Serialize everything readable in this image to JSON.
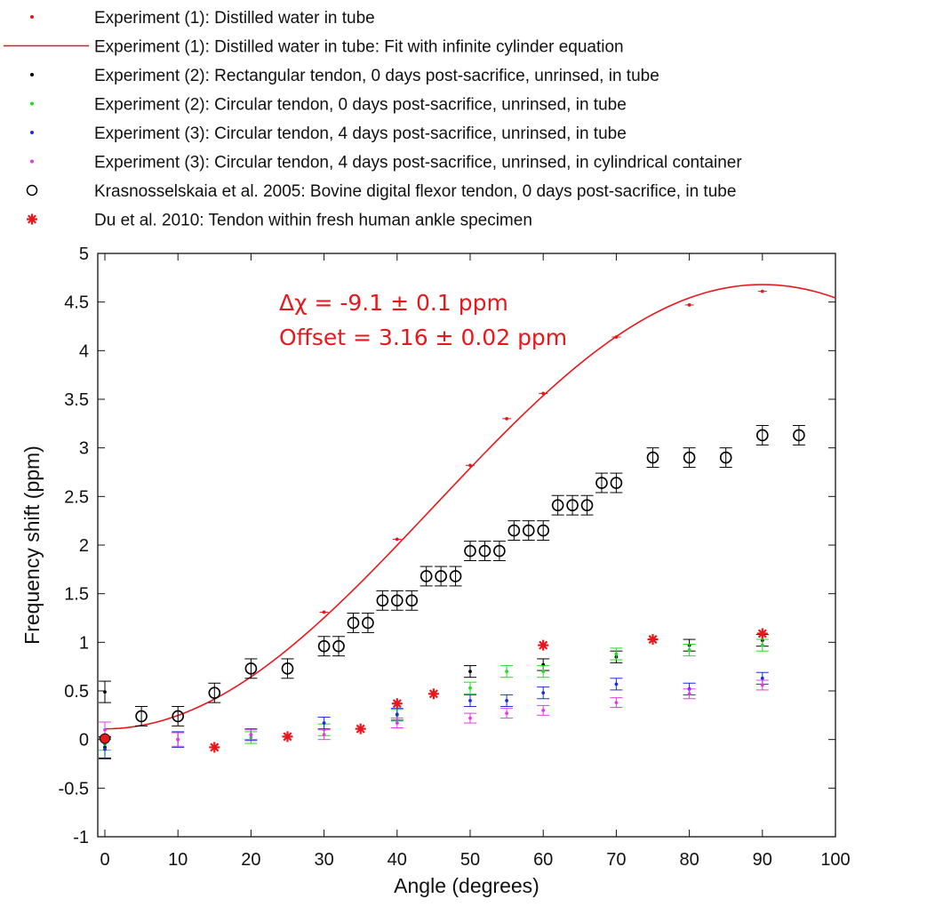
{
  "colors": {
    "exp1": "#e8171c",
    "exp2_rect": "#000000",
    "exp2_circ": "#22dd22",
    "exp3_tube": "#1a2de0",
    "exp3_cyl": "#e43be4",
    "kras": "#000000",
    "du": "#e8171c",
    "axis": "#111111",
    "annotation": "#e8171c"
  },
  "legend": [
    {
      "label": "Experiment (1): Distilled water in tube",
      "marker": "dot",
      "color": "#e8171c"
    },
    {
      "label": "Experiment (1): Distilled water in tube: Fit with infinite cylinder equation",
      "marker": "line",
      "color": "#e8171c"
    },
    {
      "label": "Experiment (2): Rectangular tendon, 0 days post-sacrifice, unrinsed, in tube",
      "marker": "dot",
      "color": "#000000"
    },
    {
      "label": "Experiment (2): Circular tendon, 0 days post-sacrifice, unrinsed, in tube",
      "marker": "dot",
      "color": "#22dd22"
    },
    {
      "label": "Experiment (3): Circular tendon, 4 days post-sacrifice, unrinsed, in tube",
      "marker": "dot",
      "color": "#1a2de0"
    },
    {
      "label": "Experiment (3): Circular tendon, 4 days post-sacrifice, unrinsed, in cylindrical container",
      "marker": "dot",
      "color": "#e43be4"
    },
    {
      "label": "Krasnosselskaia et al. 2005: Bovine digital flexor tendon, 0 days post-sacrifice, in tube",
      "marker": "circle",
      "color": "#000000"
    },
    {
      "label": "Du et al. 2010: Tendon within fresh human ankle specimen",
      "marker": "star",
      "color": "#e8171c"
    }
  ],
  "annotations": {
    "line1": "Δχ = -9.1 ± 0.1 ppm",
    "line2": "Offset = 3.16 ± 0.02 ppm"
  },
  "chart_data": {
    "type": "scatter",
    "title": "",
    "xlabel": "Angle (degrees)",
    "ylabel": "Frequency shift (ppm)",
    "xlim": [
      0,
      100
    ],
    "ylim": [
      -1,
      5
    ],
    "xticks": [
      0,
      10,
      20,
      30,
      40,
      50,
      60,
      70,
      80,
      90,
      100
    ],
    "yticks": [
      -1,
      -0.5,
      0,
      0.5,
      1,
      1.5,
      2,
      2.5,
      3,
      3.5,
      4,
      4.5,
      5
    ],
    "fit": {
      "name": "Fit with infinite cylinder equation",
      "delta_chi_ppm": -9.1,
      "offset_ppm": 3.16,
      "peak_y": 4.68,
      "base_y": 0.11
    },
    "series": [
      {
        "name": "Experiment (1): Distilled water in tube",
        "key": "exp1",
        "marker": "dot",
        "x": [
          0,
          30,
          40,
          50,
          55,
          60,
          70,
          80,
          90
        ],
        "y": [
          0.01,
          1.31,
          2.06,
          2.82,
          3.3,
          3.56,
          4.14,
          4.47,
          4.61
        ],
        "err": [
          0,
          0,
          0,
          0,
          0,
          0,
          0,
          0,
          0
        ]
      },
      {
        "name": "Experiment (2): Rectangular tendon, 0 days post-sacrifice, unrinsed, in tube",
        "key": "exp2_rect",
        "marker": "dot",
        "x": [
          0,
          0,
          50,
          60,
          70,
          80,
          90
        ],
        "y": [
          0.49,
          -0.08,
          0.7,
          0.77,
          0.85,
          0.97,
          1.02
        ],
        "err": [
          0.11,
          0.11,
          0.06,
          0.06,
          0.06,
          0.06,
          0.06
        ]
      },
      {
        "name": "Experiment (2): Circular tendon, 0 days post-sacrifice, unrinsed, in tube",
        "key": "exp2_circ",
        "marker": "dot",
        "x": [
          0,
          20,
          30,
          40,
          50,
          55,
          60,
          70,
          80,
          90
        ],
        "y": [
          -0.05,
          0.02,
          0.1,
          0.25,
          0.53,
          0.7,
          0.7,
          0.88,
          0.92,
          0.97
        ],
        "err": [
          0.06,
          0.06,
          0.06,
          0.06,
          0.06,
          0.06,
          0.06,
          0.06,
          0.06,
          0.06
        ]
      },
      {
        "name": "Experiment (3): Circular tendon, 4 days post-sacrifice, unrinsed, in tube",
        "key": "exp3_tube",
        "marker": "dot",
        "x": [
          0,
          10,
          20,
          30,
          40,
          50,
          55,
          60,
          70,
          80,
          90
        ],
        "y": [
          -0.1,
          0.0,
          0.05,
          0.17,
          0.26,
          0.4,
          0.4,
          0.48,
          0.57,
          0.52,
          0.63
        ],
        "err": [
          0.1,
          0.08,
          0.06,
          0.06,
          0.06,
          0.06,
          0.06,
          0.06,
          0.06,
          0.06,
          0.06
        ]
      },
      {
        "name": "Experiment (3): Circular tendon, 4 days post-sacrifice, unrinsed, in cylindrical container",
        "key": "exp3_cyl",
        "marker": "dot",
        "x": [
          0,
          10,
          20,
          30,
          40,
          50,
          55,
          60,
          70,
          80,
          90
        ],
        "y": [
          0.1,
          0.0,
          0.05,
          0.05,
          0.17,
          0.22,
          0.27,
          0.3,
          0.38,
          0.47,
          0.56
        ],
        "err": [
          0.08,
          0.07,
          0.05,
          0.05,
          0.05,
          0.05,
          0.05,
          0.05,
          0.05,
          0.05,
          0.05
        ]
      },
      {
        "name": "Krasnosselskaia et al. 2005: Bovine digital flexor tendon, 0 days post-sacrifice, in tube",
        "key": "kras",
        "marker": "circle",
        "x": [
          5,
          10,
          15,
          20,
          25,
          30,
          32,
          34,
          36,
          38,
          40,
          42,
          44,
          46,
          48,
          50,
          52,
          54,
          56,
          58,
          60,
          62,
          64,
          66,
          68,
          70,
          75,
          80,
          85,
          90,
          95
        ],
        "y": [
          0.24,
          0.24,
          0.48,
          0.73,
          0.73,
          0.96,
          0.96,
          1.2,
          1.2,
          1.43,
          1.43,
          1.43,
          1.68,
          1.68,
          1.68,
          1.94,
          1.94,
          1.94,
          2.15,
          2.15,
          2.15,
          2.41,
          2.41,
          2.41,
          2.64,
          2.64,
          2.9,
          2.9,
          2.9,
          3.13,
          3.13
        ],
        "err": [
          0.1,
          0.1,
          0.1,
          0.1,
          0.1,
          0.1,
          0.1,
          0.1,
          0.1,
          0.1,
          0.1,
          0.1,
          0.1,
          0.1,
          0.1,
          0.1,
          0.1,
          0.1,
          0.1,
          0.1,
          0.1,
          0.1,
          0.1,
          0.1,
          0.1,
          0.1,
          0.1,
          0.1,
          0.1,
          0.1,
          0.1
        ]
      },
      {
        "name": "Du et al. 2010: Tendon within fresh human ankle specimen",
        "key": "du",
        "marker": "star",
        "x": [
          0,
          15,
          25,
          35,
          40,
          45,
          60,
          75,
          90
        ],
        "y": [
          0.01,
          -0.08,
          0.03,
          0.11,
          0.37,
          0.47,
          0.97,
          1.03,
          1.09
        ],
        "err": [
          0,
          0,
          0,
          0,
          0,
          0,
          0,
          0,
          0
        ]
      }
    ]
  }
}
